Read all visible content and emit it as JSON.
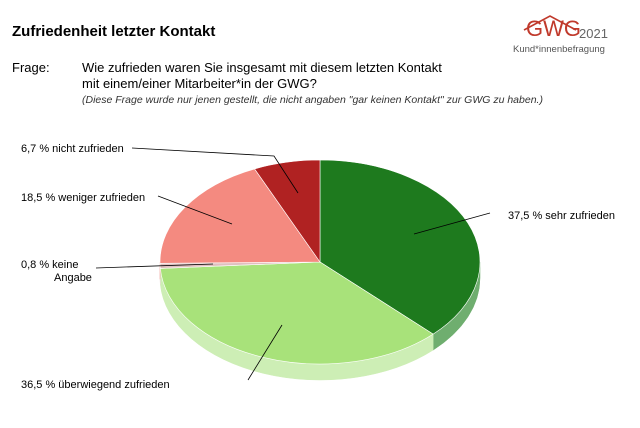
{
  "header": {
    "title": "Zufriedenheit letzter Kontakt",
    "logo_text": "GWG",
    "logo_year": "2021",
    "logo_subtitle": "Kund*innenbefragung",
    "question_label": "Frage:",
    "question_line1": "Wie zufrieden waren Sie insgesamt mit diesem letzten Kontakt",
    "question_line2": "mit einem/einer Mitarbeiter*in der GWG?",
    "note": "(Diese Frage wurde nur jenen gestellt, die nicht angaben \"gar keinen Kontakt\" zur GWG zu haben.)"
  },
  "chart_data": {
    "type": "pie",
    "unit": "%",
    "slices": [
      {
        "label": "sehr zufrieden",
        "value": 37.5,
        "value_text": "37,5 %",
        "color": "#1e7a1e",
        "side": "#6fae6f"
      },
      {
        "label": "überwiegend zufrieden",
        "value": 36.5,
        "value_text": "36,5 %",
        "color": "#a8e27a",
        "side": "#cdeeb5"
      },
      {
        "label": "keine Angabe",
        "label_lines": [
          "keine",
          "Angabe"
        ],
        "value": 0.8,
        "value_text": "0,8 %",
        "color": "#e0c0c0",
        "side": "#eddada"
      },
      {
        "label": "weniger zufrieden",
        "value": 18.5,
        "value_text": "18,5 %",
        "color": "#f48a80",
        "side": "#f6b3ad"
      },
      {
        "label": "nicht zufrieden",
        "value": 6.7,
        "value_text": "6,7 %",
        "color": "#b02222",
        "side": "#c96a6a"
      }
    ]
  }
}
